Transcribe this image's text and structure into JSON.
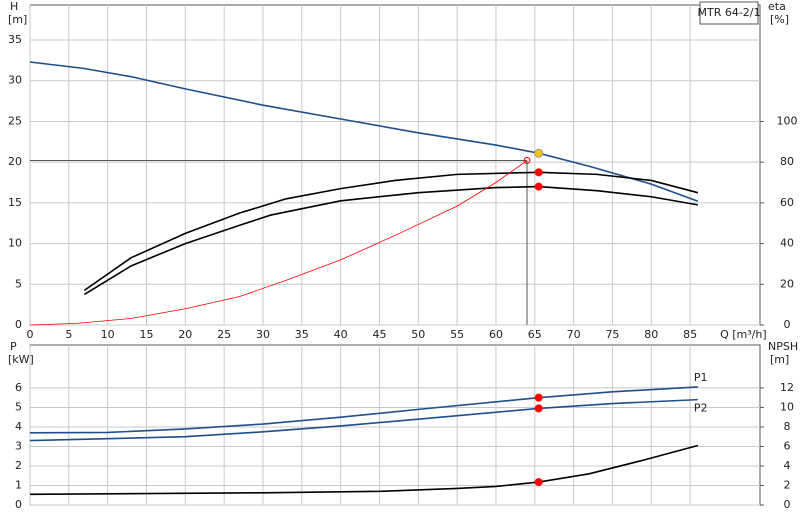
{
  "chart_data": [
    {
      "type": "line",
      "title": "MTR 64-2/1",
      "y_label": "H",
      "y_unit": "[m]",
      "y2_label": "eta",
      "y2_unit": "[%]",
      "x_label": "Q [m³/h]",
      "xlim": [
        0,
        94
      ],
      "ylim": [
        0,
        39.3
      ],
      "y2lim": [
        0,
        157.2
      ],
      "xticks": [
        0,
        5,
        10,
        15,
        20,
        25,
        30,
        35,
        40,
        45,
        50,
        55,
        60,
        65,
        70,
        75,
        80,
        85
      ],
      "yticks": [
        0,
        5,
        10,
        15,
        20,
        25,
        30,
        35
      ],
      "y2ticks": [
        0,
        20,
        40,
        60,
        80,
        100
      ],
      "grid": true,
      "series": [
        {
          "color": "#1f4e8c",
          "x": [
            0,
            7,
            13,
            20,
            30,
            40,
            50,
            60,
            65.5,
            72,
            80,
            86
          ],
          "values": [
            32.3,
            31.5,
            30.5,
            29,
            27,
            25.3,
            23.6,
            22.1,
            21.1,
            19.5,
            17.3,
            15.2
          ]
        },
        {
          "color": "#000000",
          "axis": "y2",
          "x": [
            7,
            13,
            20,
            27,
            33,
            40,
            47,
            55,
            65.5,
            73,
            80,
            86
          ],
          "values": [
            17,
            33,
            45,
            55,
            62,
            67,
            71,
            74,
            75,
            74,
            71,
            65
          ]
        },
        {
          "color": "#000000",
          "axis": "y2",
          "x": [
            7,
            13,
            20,
            27,
            31,
            40,
            50,
            60,
            65.5,
            73,
            80,
            86
          ],
          "values": [
            15,
            29,
            40,
            49,
            54,
            61,
            65,
            67.5,
            68,
            66,
            63,
            59
          ]
        },
        {
          "color": "#ff0000",
          "x": [
            0,
            6,
            13,
            20,
            27,
            33,
            40,
            47,
            55,
            60,
            64
          ],
          "values": [
            0,
            0.2,
            0.8,
            2,
            3.5,
            5.5,
            8,
            11,
            14.6,
            17.5,
            20.2
          ]
        }
      ],
      "reference": {
        "x": 64,
        "y": 20.2
      },
      "points": [
        {
          "x": 65.5,
          "y": 21.1,
          "color": "#f5c518"
        },
        {
          "x": 65.5,
          "y": 75,
          "color": "#ff0000",
          "axis": "y2"
        },
        {
          "x": 65.5,
          "y": 68,
          "color": "#ff0000",
          "axis": "y2"
        }
      ]
    },
    {
      "type": "line",
      "y_label": "P",
      "y_unit": "[kW]",
      "y2_label": "NPSH",
      "y2_unit": "[m]",
      "xlim": [
        0,
        94
      ],
      "ylim": [
        0,
        8.2
      ],
      "y2lim": [
        0,
        16.4
      ],
      "yticks": [
        0,
        1,
        2,
        3,
        4,
        5,
        6
      ],
      "y2ticks": [
        0,
        2,
        4,
        6,
        8,
        10,
        12
      ],
      "grid": true,
      "series": [
        {
          "name": "P1",
          "color": "#1f4e8c",
          "x": [
            0,
            10,
            20,
            30,
            40,
            50,
            65.5,
            75,
            86
          ],
          "values": [
            3.7,
            3.72,
            3.9,
            4.15,
            4.5,
            4.9,
            5.5,
            5.8,
            6.05
          ]
        },
        {
          "name": "P2",
          "color": "#1f4e8c",
          "x": [
            0,
            20,
            30,
            40,
            50,
            65.5,
            75,
            86
          ],
          "values": [
            3.3,
            3.5,
            3.75,
            4.05,
            4.4,
            4.95,
            5.2,
            5.4
          ]
        },
        {
          "color": "#000000",
          "axis": "y2",
          "x": [
            0,
            30,
            45,
            55,
            60,
            65.5,
            72,
            79,
            86
          ],
          "values": [
            1.1,
            1.25,
            1.4,
            1.7,
            1.9,
            2.35,
            3.2,
            4.6,
            6.1
          ]
        }
      ],
      "points": [
        {
          "x": 65.5,
          "y": 5.5,
          "color": "#ff0000"
        },
        {
          "x": 65.5,
          "y": 4.95,
          "color": "#ff0000"
        },
        {
          "x": 65.5,
          "y": 2.35,
          "color": "#ff0000",
          "axis": "y2"
        }
      ]
    }
  ]
}
